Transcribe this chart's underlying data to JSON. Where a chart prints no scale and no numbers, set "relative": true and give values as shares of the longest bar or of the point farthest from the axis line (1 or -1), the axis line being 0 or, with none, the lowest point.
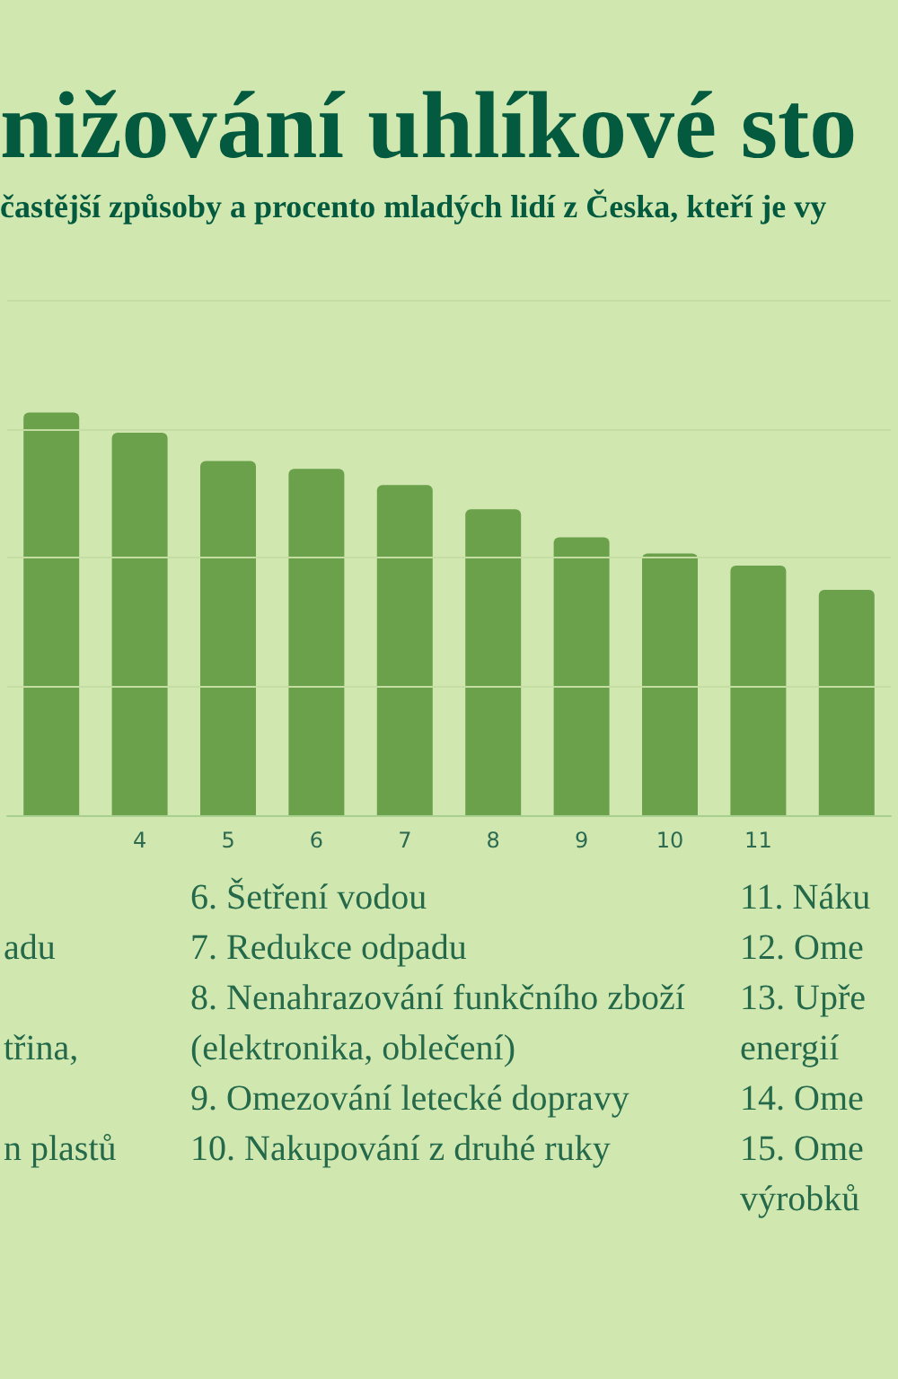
{
  "chart_data": {
    "type": "bar",
    "title": "nižování uhlíkové sto",
    "subtitle": "častější způsoby a procento mladých lidí z Česka, kteří je vy",
    "categories": [
      null,
      "4",
      "5",
      "6",
      "7",
      "8",
      "9",
      "10",
      "11",
      null
    ],
    "values": [
      1,
      0.95,
      0.88,
      0.86,
      0.82,
      0.76,
      0.69,
      0.65,
      0.62,
      0.56
    ],
    "color": "#6ba14b",
    "relative": true,
    "ref_lines": [
      {
        "axis": "y",
        "value": 0.32,
        "color": "#c3dda3"
      },
      {
        "axis": "y",
        "value": 0.64,
        "color": "#c3dda3"
      },
      {
        "axis": "y",
        "value": 0.96,
        "color": "#c3dda3"
      },
      {
        "axis": "y",
        "value": 1.28,
        "color": "#c3dda3"
      }
    ],
    "annotations": [
      "\nadu\n\ntřina,\n\nn plastů",
      "6. Šetření vodou\n7. Redukce odpadu\n8. Nenahrazování funkčního zboží\n(elektronika, oblečení)\n9. Omezování letecké dopravy\n10. Nakupování z druhé ruky",
      "11. Náku\n12. Ome\n13. Upře\nenergií\n14. Ome\n15. Ome\nvýrobků"
    ]
  }
}
